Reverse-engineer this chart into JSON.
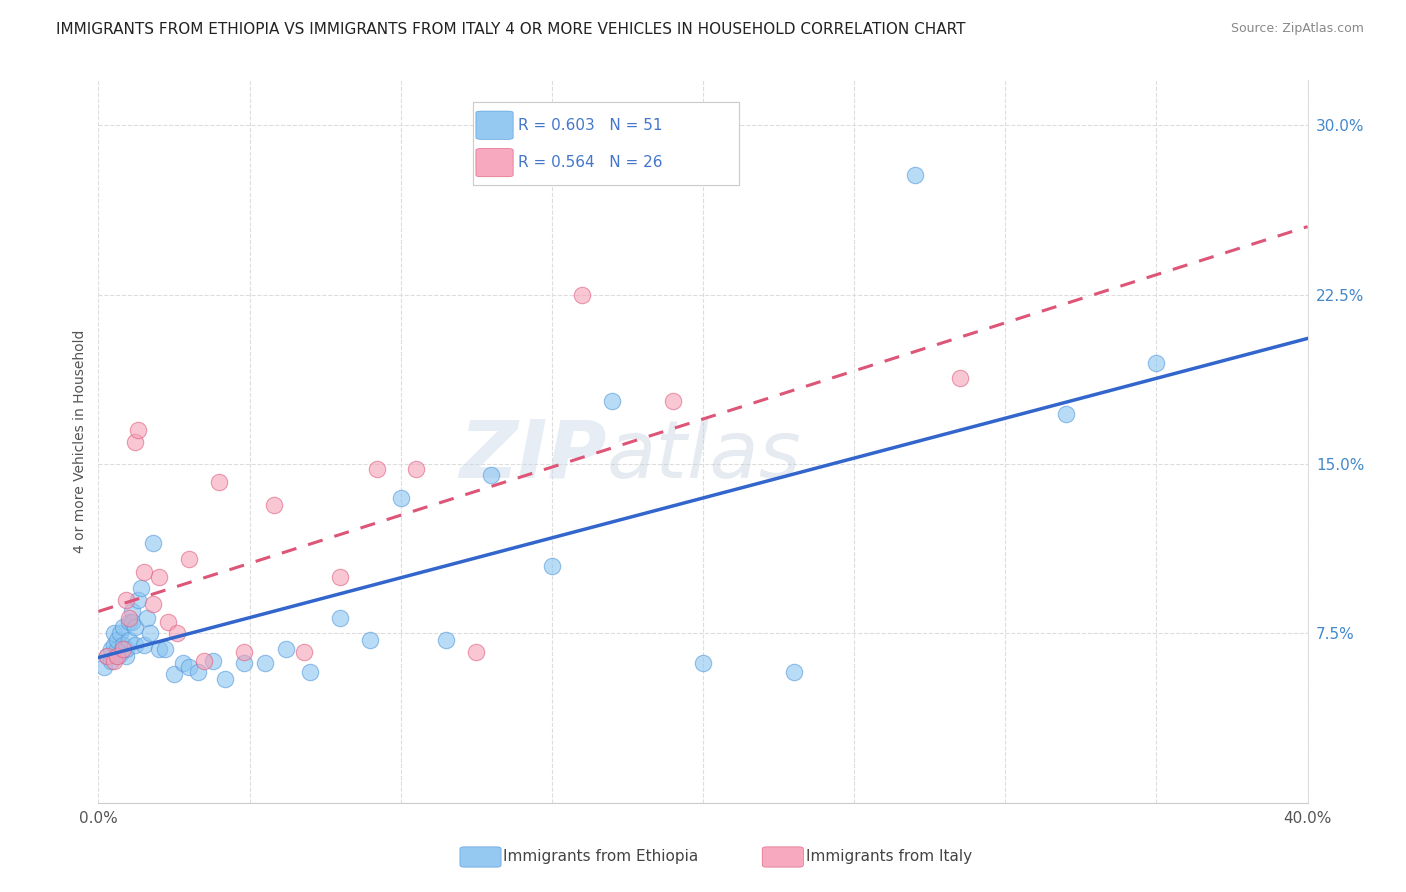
{
  "title": "IMMIGRANTS FROM ETHIOPIA VS IMMIGRANTS FROM ITALY 4 OR MORE VEHICLES IN HOUSEHOLD CORRELATION CHART",
  "source": "Source: ZipAtlas.com",
  "ylabel": "4 or more Vehicles in Household",
  "xlim": [
    0.0,
    0.4
  ],
  "ylim": [
    0.0,
    0.32
  ],
  "xticks": [
    0.0,
    0.05,
    0.1,
    0.15,
    0.2,
    0.25,
    0.3,
    0.35,
    0.4
  ],
  "xticklabels": [
    "0.0%",
    "",
    "",
    "",
    "",
    "",
    "",
    "",
    "40.0%"
  ],
  "yticks": [
    0.0,
    0.075,
    0.15,
    0.225,
    0.3
  ],
  "yticklabels": [
    "",
    "7.5%",
    "15.0%",
    "22.5%",
    "30.0%"
  ],
  "ethiopia_color": "#8AC4F0",
  "ethiopia_edge_color": "#5599DD",
  "italy_color": "#F5A0B8",
  "italy_edge_color": "#E06080",
  "ethiopia_line_color": "#3366CC",
  "italy_line_color": "#DD5577",
  "ethiopia_R": 0.603,
  "ethiopia_N": 51,
  "italy_R": 0.564,
  "italy_N": 26,
  "watermark_zip": "ZIP",
  "watermark_atlas": "atlas",
  "legend_R_color": "#4477CC",
  "legend_N_color": "#4477CC",
  "ethiopia_scatter_x": [
    0.002,
    0.003,
    0.004,
    0.004,
    0.005,
    0.005,
    0.006,
    0.006,
    0.006,
    0.007,
    0.007,
    0.008,
    0.008,
    0.009,
    0.009,
    0.01,
    0.01,
    0.011,
    0.011,
    0.012,
    0.012,
    0.013,
    0.014,
    0.015,
    0.016,
    0.017,
    0.018,
    0.02,
    0.022,
    0.025,
    0.028,
    0.03,
    0.033,
    0.038,
    0.042,
    0.048,
    0.055,
    0.062,
    0.07,
    0.08,
    0.09,
    0.1,
    0.115,
    0.13,
    0.15,
    0.17,
    0.2,
    0.23,
    0.27,
    0.32,
    0.35
  ],
  "ethiopia_scatter_y": [
    0.06,
    0.065,
    0.068,
    0.063,
    0.07,
    0.075,
    0.065,
    0.068,
    0.072,
    0.066,
    0.075,
    0.07,
    0.078,
    0.065,
    0.068,
    0.08,
    0.072,
    0.085,
    0.08,
    0.07,
    0.078,
    0.09,
    0.095,
    0.07,
    0.082,
    0.075,
    0.115,
    0.068,
    0.068,
    0.057,
    0.062,
    0.06,
    0.058,
    0.063,
    0.055,
    0.062,
    0.062,
    0.068,
    0.058,
    0.082,
    0.072,
    0.135,
    0.072,
    0.145,
    0.105,
    0.178,
    0.062,
    0.058,
    0.278,
    0.172,
    0.195
  ],
  "italy_scatter_x": [
    0.003,
    0.005,
    0.006,
    0.008,
    0.009,
    0.01,
    0.012,
    0.013,
    0.015,
    0.018,
    0.02,
    0.023,
    0.026,
    0.03,
    0.035,
    0.04,
    0.048,
    0.058,
    0.068,
    0.08,
    0.092,
    0.105,
    0.125,
    0.16,
    0.19,
    0.285
  ],
  "italy_scatter_y": [
    0.065,
    0.063,
    0.065,
    0.068,
    0.09,
    0.082,
    0.16,
    0.165,
    0.102,
    0.088,
    0.1,
    0.08,
    0.075,
    0.108,
    0.063,
    0.142,
    0.067,
    0.132,
    0.067,
    0.1,
    0.148,
    0.148,
    0.067,
    0.225,
    0.178,
    0.188
  ]
}
